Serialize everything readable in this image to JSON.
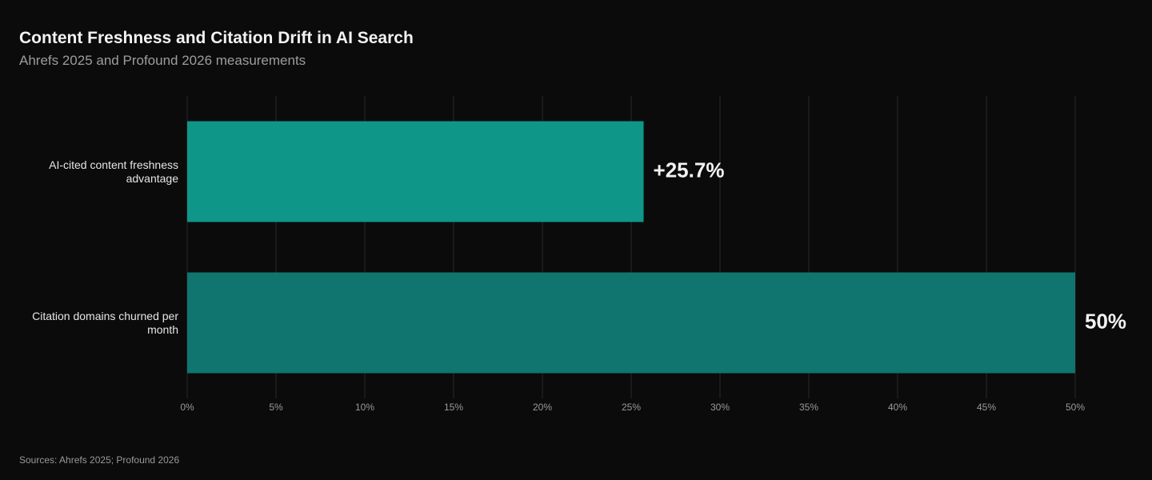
{
  "chart_data": {
    "type": "bar",
    "orientation": "horizontal",
    "title": "Content Freshness and Citation Drift in AI Search",
    "subtitle": "Ahrefs 2025 and Profound 2026 measurements",
    "categories": [
      "AI-cited content freshness advantage",
      "Citation domains churned per month"
    ],
    "values": [
      25.7,
      50
    ],
    "value_labels": [
      "+25.7%",
      "50%"
    ],
    "colors": [
      "#0e9688",
      "#10756e"
    ],
    "xlim": [
      0,
      50
    ],
    "xticks": [
      {
        "value": 0,
        "label": "0%"
      },
      {
        "value": 5,
        "label": "5%"
      },
      {
        "value": 10,
        "label": "10%"
      },
      {
        "value": 15,
        "label": "15%"
      },
      {
        "value": 20,
        "label": "20%"
      },
      {
        "value": 25,
        "label": "25%"
      },
      {
        "value": 30,
        "label": "30%"
      },
      {
        "value": 35,
        "label": "35%"
      },
      {
        "value": 40,
        "label": "40%"
      },
      {
        "value": 45,
        "label": "45%"
      },
      {
        "value": 50,
        "label": "50%"
      }
    ],
    "grid": true,
    "source": "Sources: Ahrefs 2025; Profound 2026"
  }
}
